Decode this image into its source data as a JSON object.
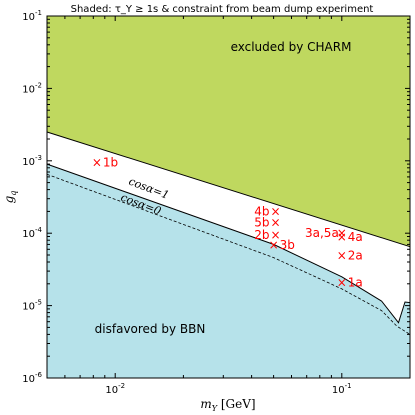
{
  "chart_data": {
    "type": "scatter",
    "title": "Shaded: τ_Y ≥ 1s & constraint from beam dump experiment",
    "xlabel": "m_Y [GeV]",
    "ylabel": "g_q",
    "xscale": "log",
    "yscale": "log",
    "xlim": [
      0.005,
      0.2
    ],
    "ylim": [
      1e-06,
      0.1
    ],
    "x_ticks": [
      {
        "value": 0.01,
        "label": "10^-2"
      },
      {
        "value": 0.1,
        "label": "10^-1"
      }
    ],
    "y_ticks": [
      {
        "value": 1e-06,
        "label": "10^-6"
      },
      {
        "value": 1e-05,
        "label": "10^-5"
      },
      {
        "value": 0.0001,
        "label": "10^-4"
      },
      {
        "value": 0.001,
        "label": "10^-3"
      },
      {
        "value": 0.01,
        "label": "10^-2"
      },
      {
        "value": 0.1,
        "label": "10^-1"
      }
    ],
    "regions": {
      "charm": {
        "label": "excluded by CHARM",
        "color": "#bfd85f",
        "lower_boundary": [
          [
            0.005,
            0.0025
          ],
          [
            0.2,
            6.5e-05
          ]
        ]
      },
      "bbn": {
        "label": "disfavored by BBN",
        "color": "#b6e2ea",
        "upper_boundary": [
          [
            0.005,
            0.0009
          ],
          [
            0.05,
            7e-05
          ],
          [
            0.1,
            2.5e-05
          ],
          [
            0.15,
            1.15e-05
          ],
          [
            0.178,
            5.8e-06
          ],
          [
            0.19,
            1.12e-05
          ],
          [
            0.2,
            1.1e-05
          ]
        ]
      }
    },
    "curves": [
      {
        "name": "cosα=1",
        "style": "solid",
        "points": [
          [
            0.005,
            0.0009
          ],
          [
            0.05,
            7e-05
          ],
          [
            0.1,
            2.5e-05
          ],
          [
            0.15,
            1.15e-05
          ],
          [
            0.178,
            5.8e-06
          ],
          [
            0.19,
            1.12e-05
          ],
          [
            0.2,
            1.1e-05
          ]
        ]
      },
      {
        "name": "cosα=0",
        "style": "dashed",
        "points": [
          [
            0.005,
            0.00065
          ],
          [
            0.05,
            4.6e-05
          ],
          [
            0.1,
            1.7e-05
          ],
          [
            0.15,
            8.5e-06
          ],
          [
            0.175,
            5.2e-06
          ],
          [
            0.2,
            4e-06
          ]
        ]
      }
    ],
    "points": [
      {
        "name": "1b",
        "x": 0.0083,
        "y": 0.00095
      },
      {
        "name": "4b",
        "x": 0.051,
        "y": 0.0002
      },
      {
        "name": "5b",
        "x": 0.051,
        "y": 0.00014
      },
      {
        "name": "2b",
        "x": 0.051,
        "y": 9.5e-05
      },
      {
        "name": "3b",
        "x": 0.05,
        "y": 6.9e-05
      },
      {
        "name": "3a,5a",
        "x": 0.1,
        "y": 0.0001
      },
      {
        "name": "4a",
        "x": 0.1,
        "y": 8.8e-05
      },
      {
        "name": "2a",
        "x": 0.1,
        "y": 4.9e-05
      },
      {
        "name": "1a",
        "x": 0.1,
        "y": 2.1e-05
      }
    ],
    "marker_color": "#ff0000"
  }
}
